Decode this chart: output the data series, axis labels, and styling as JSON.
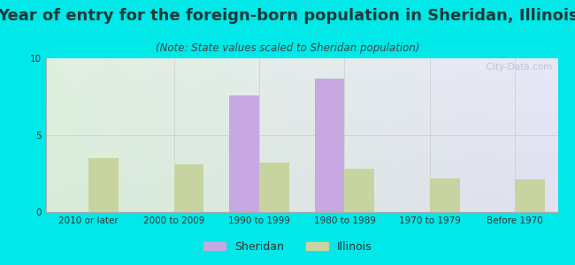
{
  "title": "Year of entry for the foreign-born population in Sheridan, Illinois",
  "subtitle": "(Note: State values scaled to Sheridan population)",
  "categories": [
    "2010 or later",
    "2000 to 2009",
    "1990 to 1999",
    "1980 to 1989",
    "1970 to 1979",
    "Before 1970"
  ],
  "sheridan_values": [
    0,
    0,
    7.6,
    8.7,
    0,
    0
  ],
  "illinois_values": [
    3.5,
    3.1,
    3.2,
    2.8,
    2.2,
    2.1
  ],
  "sheridan_color": "#c8a8e0",
  "illinois_color": "#c8d4a0",
  "bg_outer": "#00e8e8",
  "bg_plot_tl": "#e0f0e0",
  "bg_plot_tr": "#e8e8f8",
  "bg_plot_bl": "#d8edd8",
  "bg_plot_br": "#e0e0f0",
  "ylim": [
    0,
    10
  ],
  "yticks": [
    0,
    5,
    10
  ],
  "bar_width": 0.35,
  "title_fontsize": 13,
  "subtitle_fontsize": 8.5,
  "legend_fontsize": 9,
  "tick_fontsize": 7.5,
  "watermark": "  City-Data.com"
}
